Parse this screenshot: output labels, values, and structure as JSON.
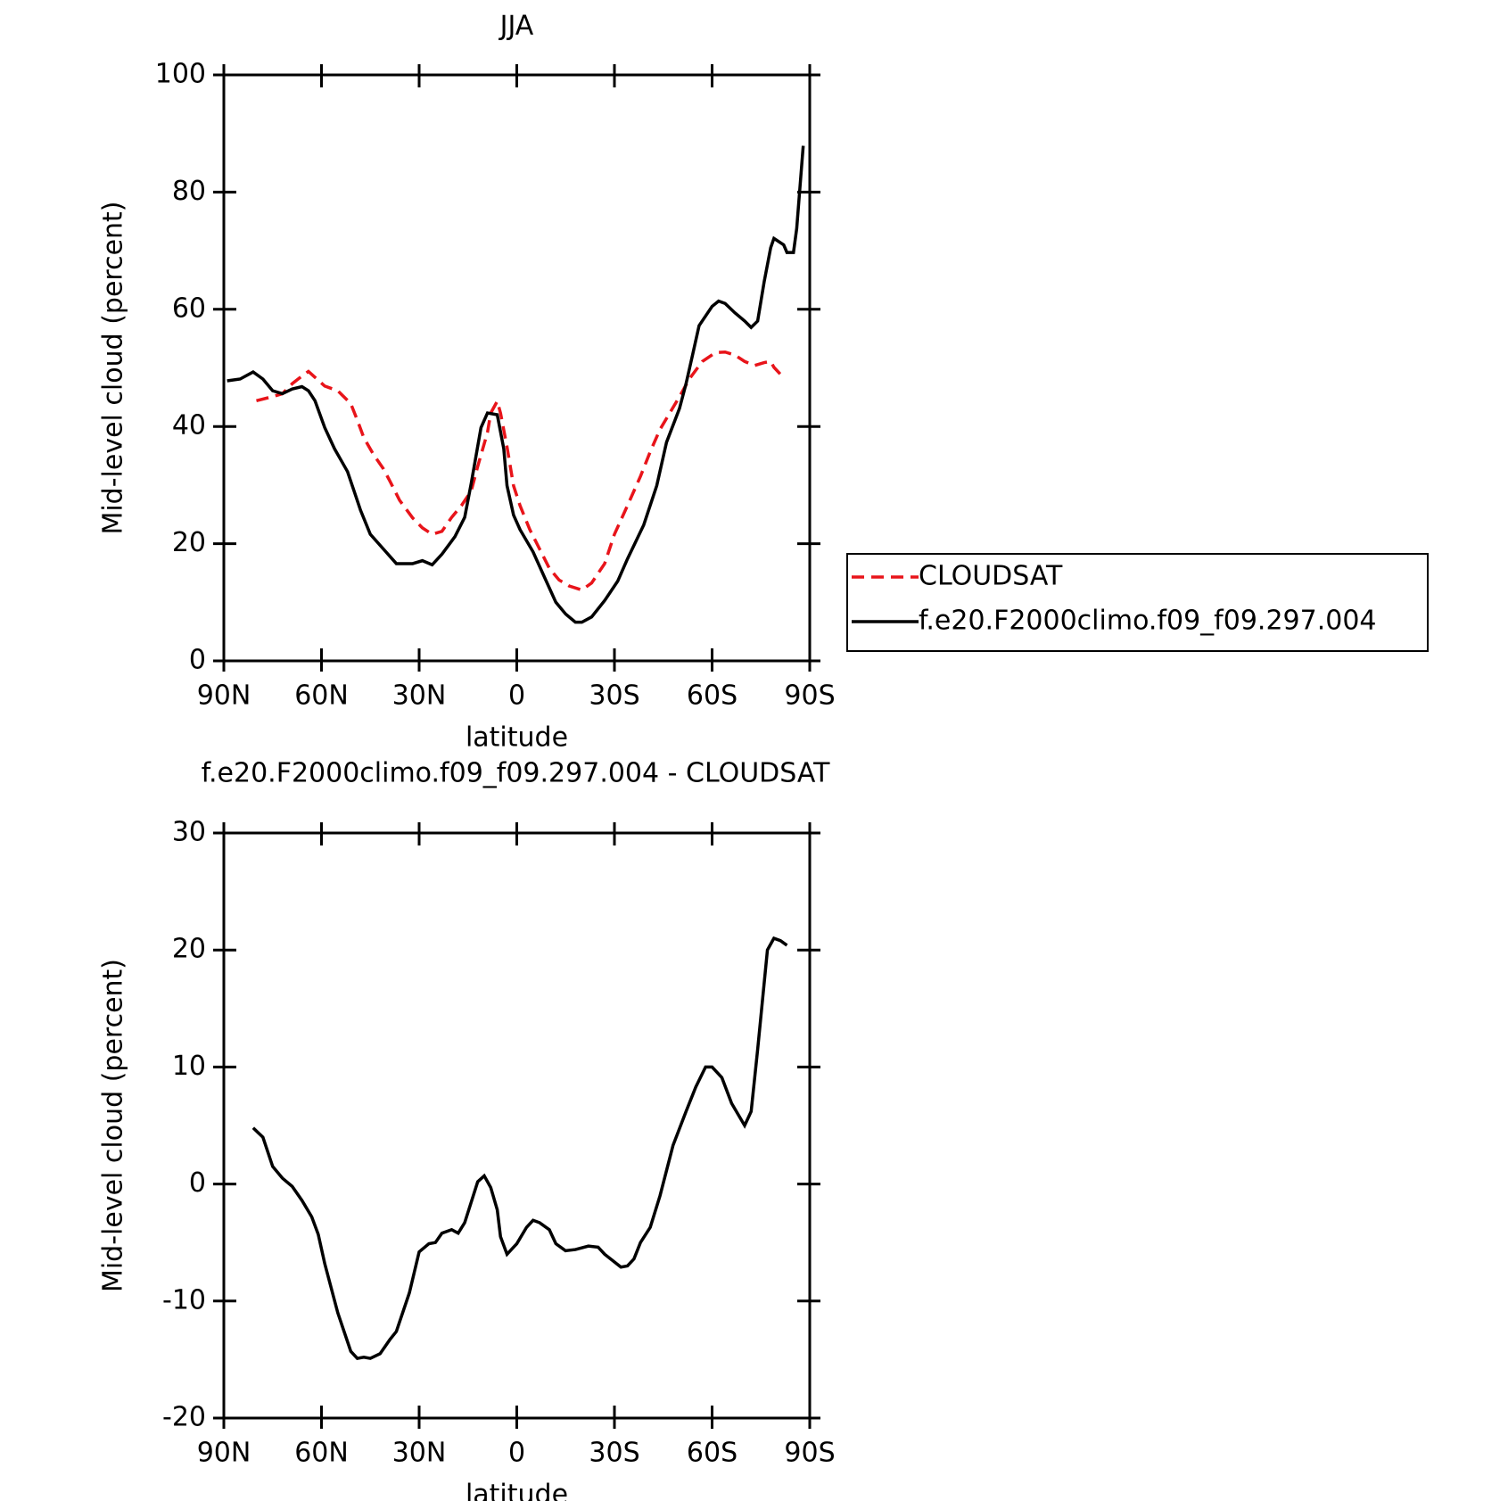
{
  "chart_data": [
    {
      "type": "line",
      "title": "JJA",
      "xlabel": "latitude",
      "ylabel": "Mid-level cloud (percent)",
      "xlim": [
        90,
        -90
      ],
      "ylim": [
        0,
        100
      ],
      "xticks": [
        {
          "value": 90,
          "label": "90N"
        },
        {
          "value": 60,
          "label": "60N"
        },
        {
          "value": 30,
          "label": "30N"
        },
        0,
        {
          "value": -30,
          "label": "30S"
        },
        {
          "value": -60,
          "label": "60S"
        },
        {
          "value": -90,
          "label": "90S"
        }
      ],
      "yticks": [
        0,
        20,
        40,
        60,
        80,
        100
      ],
      "legend": "right",
      "series": [
        {
          "name": "CLOUDSAT",
          "color": "#e8141a",
          "dash": true,
          "x": [
            80,
            75,
            72,
            69,
            66,
            64,
            62,
            59,
            55,
            51,
            49,
            47,
            44,
            41,
            39,
            36,
            32,
            29,
            26,
            23,
            20,
            17,
            14,
            12,
            9,
            8,
            6,
            5,
            3,
            1,
            -1,
            -4,
            -7,
            -10,
            -13,
            -16,
            -20,
            -23,
            -27,
            -30,
            -34,
            -38,
            -41,
            -44,
            -47,
            -50,
            -53,
            -57,
            -61,
            -64,
            -67,
            -70,
            -73,
            -76,
            -78,
            -79,
            -81
          ],
          "values": [
            44.4,
            45.1,
            45.6,
            47.3,
            48.6,
            49.4,
            48.4,
            46.9,
            46.1,
            43.9,
            41.1,
            38.1,
            35.2,
            32.8,
            30.7,
            27.4,
            24.4,
            22.7,
            21.6,
            22.1,
            24.5,
            26.5,
            29.0,
            33.2,
            39.0,
            42.3,
            44.3,
            42.3,
            36.5,
            29.9,
            26.5,
            22.4,
            19.1,
            15.8,
            13.8,
            12.8,
            12.1,
            13.3,
            16.6,
            21.6,
            26.5,
            31.5,
            35.7,
            39.5,
            42.3,
            45.1,
            48.1,
            51.1,
            52.6,
            52.7,
            52.2,
            51.1,
            50.4,
            50.9,
            51.1,
            50.1,
            48.9
          ]
        },
        {
          "name": "f.e20.F2000climo.f09_f09.297.004",
          "color": "#000000",
          "dash": false,
          "x": [
            89,
            85,
            81,
            78,
            75,
            72,
            69,
            66,
            64,
            62,
            59,
            56,
            52,
            50,
            48,
            45,
            41,
            37,
            32,
            29,
            26,
            23,
            19,
            16,
            14,
            11,
            9,
            6,
            4,
            3,
            1,
            -1,
            -5,
            -8,
            -12,
            -15,
            -18,
            -20,
            -23,
            -27,
            -31,
            -34,
            -39,
            -43,
            -46,
            -50,
            -52,
            -54,
            -56,
            -60,
            -62,
            -64,
            -67,
            -70,
            -72,
            -74,
            -76,
            -78,
            -79,
            -82,
            -83,
            -85,
            -86,
            -88
          ],
          "values": [
            47.8,
            48.1,
            49.3,
            48.1,
            46.1,
            45.6,
            46.4,
            46.8,
            46.1,
            44.4,
            39.8,
            36.2,
            32.3,
            29.0,
            25.7,
            21.6,
            19.1,
            16.6,
            16.6,
            17.1,
            16.4,
            18.2,
            21.2,
            24.5,
            30.3,
            39.8,
            42.3,
            42.0,
            36.2,
            29.9,
            24.9,
            22.4,
            18.6,
            14.9,
            10.0,
            8.0,
            6.6,
            6.6,
            7.5,
            10.3,
            13.6,
            17.4,
            23.2,
            29.9,
            37.3,
            43.1,
            47.3,
            52.2,
            57.2,
            60.5,
            61.4,
            61.0,
            59.4,
            58.0,
            56.9,
            58.0,
            64.7,
            70.5,
            72.1,
            71.0,
            69.7,
            69.7,
            73.8,
            87.9
          ]
        }
      ]
    },
    {
      "type": "line",
      "title": "f.e20.F2000climo.f09_f09.297.004 - CLOUDSAT",
      "xlabel": "latitude",
      "ylabel": "Mid-level cloud (percent)",
      "xlim": [
        90,
        -90
      ],
      "ylim": [
        -20,
        30
      ],
      "xticks": [
        {
          "value": 90,
          "label": "90N"
        },
        {
          "value": 60,
          "label": "60N"
        },
        {
          "value": 30,
          "label": "30N"
        },
        0,
        {
          "value": -30,
          "label": "30S"
        },
        {
          "value": -60,
          "label": "60S"
        },
        {
          "value": -90,
          "label": "90S"
        }
      ],
      "yticks": [
        -20,
        -10,
        0,
        10,
        20,
        30
      ],
      "series": [
        {
          "color": "#000000",
          "dash": false,
          "x": [
            81,
            78,
            75,
            72,
            69,
            66,
            63,
            61,
            59,
            55,
            51,
            49,
            47,
            45,
            42,
            39,
            37,
            33,
            30,
            27,
            25,
            23,
            20,
            18,
            16,
            12,
            10,
            8,
            6,
            5,
            3,
            0,
            -3,
            -5,
            -7,
            -10,
            -12,
            -15,
            -18,
            -22,
            -25,
            -27,
            -32,
            -34,
            -36,
            -38,
            -41,
            -44,
            -48,
            -52,
            -55,
            -58,
            -60,
            -63,
            -66,
            -70,
            -72,
            -74,
            -77,
            -79,
            -81,
            -83
          ],
          "values": [
            4.8,
            4.0,
            1.5,
            0.5,
            -0.2,
            -1.4,
            -2.8,
            -4.3,
            -6.8,
            -11.0,
            -14.3,
            -14.9,
            -14.8,
            -14.9,
            -14.5,
            -13.3,
            -12.6,
            -9.3,
            -5.8,
            -5.1,
            -5.0,
            -4.2,
            -3.9,
            -4.2,
            -3.3,
            0.2,
            0.7,
            -0.3,
            -2.2,
            -4.5,
            -6.0,
            -5.1,
            -3.7,
            -3.1,
            -3.3,
            -3.9,
            -5.1,
            -5.7,
            -5.6,
            -5.3,
            -5.4,
            -6.0,
            -7.1,
            -7.0,
            -6.4,
            -5.0,
            -3.7,
            -1.0,
            3.3,
            6.2,
            8.3,
            10.0,
            10.0,
            9.1,
            6.9,
            5.0,
            6.2,
            11.5,
            20.0,
            21.0,
            20.8,
            20.4
          ]
        }
      ]
    }
  ]
}
